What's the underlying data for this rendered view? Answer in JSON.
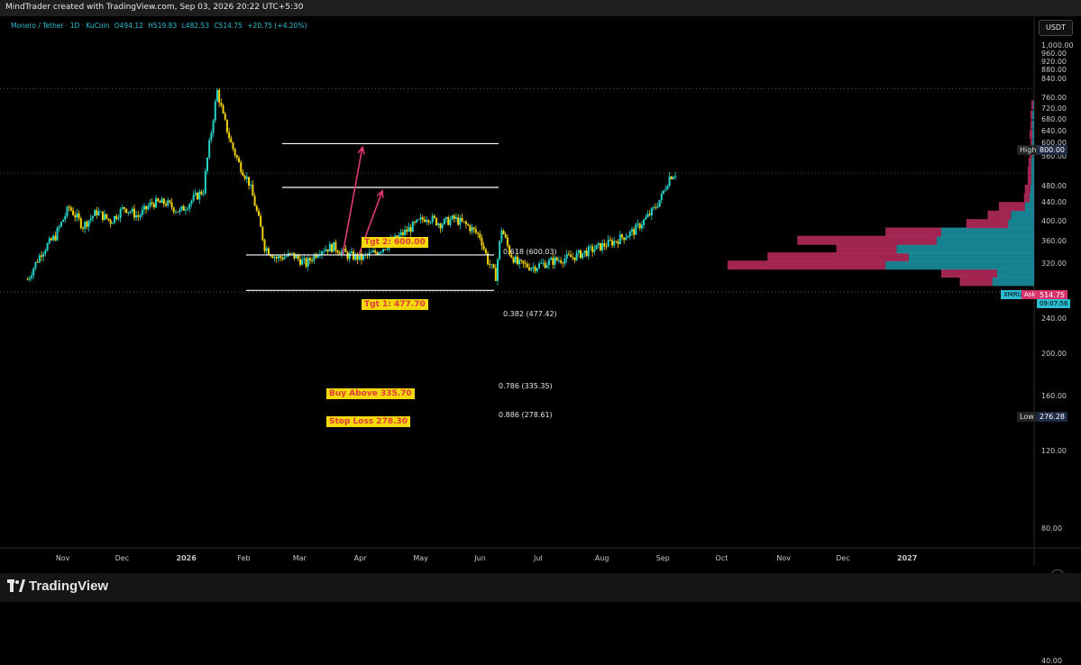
{
  "header": {
    "attribution": "MindTrader created with TradingView.com, Sep 03, 2026 20:22 UTC+5:30"
  },
  "symbol": {
    "name": "Monero / Tether · 1D · KuCoin",
    "open": "O494.12",
    "high": "H519.83",
    "low": "L482.53",
    "close": "C514.75",
    "change": "+20.75 (+4.20%)"
  },
  "currency": "USDT",
  "footer": {
    "brand": "TradingView"
  },
  "colors": {
    "up": "#26d4c8",
    "down": "#f2d20c",
    "vp_up": "#1b8fa0",
    "vp_down": "#b3295a",
    "arrow": "#e33a73",
    "label_bg": "#f5d90a",
    "label_text": "#e03a3a"
  },
  "chart_data": {
    "type": "candlestick",
    "y_axis_scale": "log",
    "y_range": [
      36,
      1100
    ],
    "y_ticks": [
      "1,000.00",
      "960.00",
      "920.00",
      "880.00",
      "840.00",
      "760.00",
      "720.00",
      "680.00",
      "640.00",
      "600.00",
      "560.00",
      "480.00",
      "440.00",
      "400.00",
      "360.00",
      "320.00",
      "240.00",
      "200.00",
      "160.00",
      "120.00",
      "80.00",
      "40.00"
    ],
    "x_ticks": [
      "Nov",
      "Dec",
      "2026",
      "Feb",
      "Mar",
      "Apr",
      "May",
      "Jun",
      "Jul",
      "Aug",
      "Sep",
      "Oct",
      "Nov",
      "Dec",
      "2027"
    ],
    "price_tags": {
      "high": {
        "label": "High",
        "value": "800.00"
      },
      "low": {
        "label": "Low",
        "value": "276.28"
      },
      "last": {
        "symbol": "XMRUSDT",
        "ask_label": "Ask",
        "value": "514.75",
        "sub": "09:07:56"
      }
    },
    "fib_levels": [
      {
        "label": "0.618 (600.03)",
        "value": 600.03
      },
      {
        "label": "0.382 (477.42)",
        "value": 477.42
      },
      {
        "label": "0.786 (335.35)",
        "value": 335.35
      },
      {
        "label": "0.886 (278.61)",
        "value": 278.61
      }
    ],
    "annotations": {
      "target2": "Tgt 2: 600.00",
      "target1": "Tgt 1: 477.70",
      "entry": "Buy Above 335.70",
      "stop": "Stop Loss 278.30"
    },
    "price_path": [
      [
        "2025-10-15",
        295
      ],
      [
        "2025-10-22",
        340
      ],
      [
        "2025-10-29",
        370
      ],
      [
        "2025-11-05",
        430
      ],
      [
        "2025-11-12",
        390
      ],
      [
        "2025-11-19",
        420
      ],
      [
        "2025-11-26",
        400
      ],
      [
        "2025-12-03",
        430
      ],
      [
        "2025-12-10",
        410
      ],
      [
        "2025-12-17",
        440
      ],
      [
        "2025-12-24",
        440
      ],
      [
        "2025-12-31",
        420
      ],
      [
        "2026-01-07",
        450
      ],
      [
        "2026-01-12",
        470
      ],
      [
        "2026-01-16",
        640
      ],
      [
        "2026-01-19",
        790
      ],
      [
        "2026-01-22",
        690
      ],
      [
        "2026-01-26",
        600
      ],
      [
        "2026-01-30",
        540
      ],
      [
        "2026-02-04",
        490
      ],
      [
        "2026-02-08",
        420
      ],
      [
        "2026-02-12",
        350
      ],
      [
        "2026-02-18",
        330
      ],
      [
        "2026-02-26",
        335
      ],
      [
        "2026-03-05",
        320
      ],
      [
        "2026-03-12",
        345
      ],
      [
        "2026-03-19",
        350
      ],
      [
        "2026-03-26",
        335
      ],
      [
        "2026-04-02",
        330
      ],
      [
        "2026-04-09",
        340
      ],
      [
        "2026-04-16",
        355
      ],
      [
        "2026-04-23",
        375
      ],
      [
        "2026-04-30",
        395
      ],
      [
        "2026-05-05",
        410
      ],
      [
        "2026-05-12",
        395
      ],
      [
        "2026-05-19",
        405
      ],
      [
        "2026-05-26",
        390
      ],
      [
        "2026-06-01",
        370
      ],
      [
        "2026-06-05",
        325
      ],
      [
        "2026-06-09",
        300
      ],
      [
        "2026-06-12",
        385
      ],
      [
        "2026-06-16",
        340
      ],
      [
        "2026-06-20",
        320
      ],
      [
        "2026-06-28",
        315
      ],
      [
        "2026-07-08",
        325
      ],
      [
        "2026-07-18",
        332
      ],
      [
        "2026-07-28",
        345
      ],
      [
        "2026-08-08",
        360
      ],
      [
        "2026-08-18",
        380
      ],
      [
        "2026-08-24",
        405
      ],
      [
        "2026-08-28",
        425
      ],
      [
        "2026-09-01",
        455
      ],
      [
        "2026-09-05",
        505
      ],
      [
        "2026-09-08",
        515
      ]
    ],
    "volume_profile": [
      {
        "price": 292,
        "up": 45,
        "down": 35
      },
      {
        "price": 305,
        "up": 40,
        "down": 60
      },
      {
        "price": 318,
        "up": 160,
        "down": 170
      },
      {
        "price": 332,
        "up": 135,
        "down": 152
      },
      {
        "price": 346,
        "up": 148,
        "down": 65
      },
      {
        "price": 362,
        "up": 105,
        "down": 150
      },
      {
        "price": 378,
        "up": 100,
        "down": 60
      },
      {
        "price": 395,
        "up": 28,
        "down": 45
      },
      {
        "price": 413,
        "up": 25,
        "down": 25
      },
      {
        "price": 432,
        "up": 10,
        "down": 28
      },
      {
        "price": 452,
        "up": 5,
        "down": 6
      },
      {
        "price": 473,
        "up": 4,
        "down": 6
      },
      {
        "price": 496,
        "up": 3,
        "down": 4
      },
      {
        "price": 520,
        "up": 3,
        "down": 4
      },
      {
        "price": 545,
        "up": 3,
        "down": 3
      },
      {
        "price": 572,
        "up": 2,
        "down": 3
      },
      {
        "price": 600,
        "up": 2,
        "down": 2
      },
      {
        "price": 630,
        "up": 2,
        "down": 3
      },
      {
        "price": 662,
        "up": 2,
        "down": 2
      },
      {
        "price": 697,
        "up": 2,
        "down": 2
      },
      {
        "price": 735,
        "up": 1,
        "down": 2
      }
    ]
  }
}
